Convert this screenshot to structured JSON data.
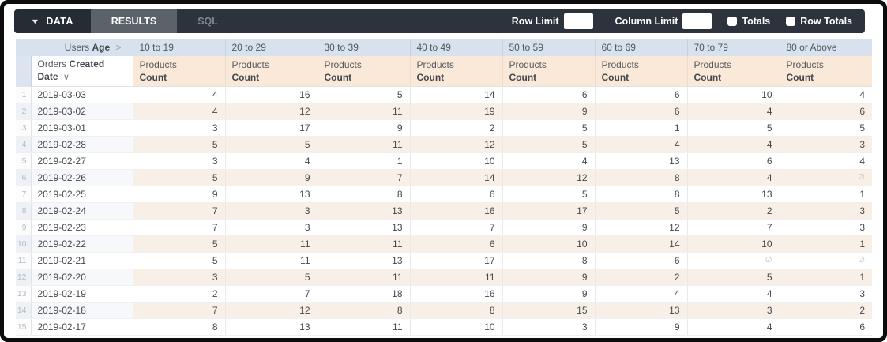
{
  "toolbar": {
    "tabs": [
      {
        "label": "DATA",
        "active": true
      },
      {
        "label": "RESULTS",
        "active": false
      },
      {
        "label": "SQL",
        "active": false
      }
    ],
    "row_limit_label": "Row Limit",
    "row_limit_value": "",
    "column_limit_label": "Column Limit",
    "column_limit_value": "",
    "totals_label": "Totals",
    "totals_checked": false,
    "row_totals_label": "Row Totals",
    "row_totals_checked": false
  },
  "table": {
    "pivot_field": {
      "prefix": "Users",
      "bold": "Age"
    },
    "row_field": {
      "prefix": "Orders",
      "bold1": "Created",
      "bold2": "Date"
    },
    "age_buckets": [
      "10 to 19",
      "20 to 29",
      "30 to 39",
      "40 to 49",
      "50 to 59",
      "60 to 69",
      "70 to 79",
      "80 or Above"
    ],
    "measure": {
      "prefix": "Products",
      "bold": "Count"
    },
    "null_symbol": "∅",
    "rows": [
      {
        "n": 1,
        "date": "2019-03-03",
        "values": [
          4,
          16,
          5,
          14,
          6,
          6,
          10,
          4
        ]
      },
      {
        "n": 2,
        "date": "2019-03-02",
        "values": [
          4,
          12,
          11,
          19,
          9,
          6,
          4,
          6
        ]
      },
      {
        "n": 3,
        "date": "2019-03-01",
        "values": [
          3,
          17,
          9,
          2,
          5,
          1,
          5,
          5
        ]
      },
      {
        "n": 4,
        "date": "2019-02-28",
        "values": [
          5,
          5,
          11,
          12,
          5,
          4,
          4,
          3
        ]
      },
      {
        "n": 5,
        "date": "2019-02-27",
        "values": [
          3,
          4,
          1,
          10,
          4,
          13,
          6,
          4
        ]
      },
      {
        "n": 6,
        "date": "2019-02-26",
        "values": [
          5,
          9,
          7,
          14,
          12,
          8,
          4,
          null
        ]
      },
      {
        "n": 7,
        "date": "2019-02-25",
        "values": [
          9,
          13,
          8,
          6,
          5,
          8,
          13,
          1
        ]
      },
      {
        "n": 8,
        "date": "2019-02-24",
        "values": [
          7,
          3,
          13,
          16,
          17,
          5,
          2,
          3
        ]
      },
      {
        "n": 9,
        "date": "2019-02-23",
        "values": [
          7,
          3,
          13,
          7,
          9,
          12,
          7,
          3
        ]
      },
      {
        "n": 10,
        "date": "2019-02-22",
        "values": [
          5,
          11,
          11,
          6,
          10,
          14,
          10,
          1
        ]
      },
      {
        "n": 11,
        "date": "2019-02-21",
        "values": [
          5,
          11,
          13,
          17,
          8,
          6,
          null,
          null
        ]
      },
      {
        "n": 12,
        "date": "2019-02-20",
        "values": [
          3,
          5,
          11,
          11,
          9,
          2,
          5,
          1
        ]
      },
      {
        "n": 13,
        "date": "2019-02-19",
        "values": [
          2,
          7,
          18,
          16,
          9,
          4,
          4,
          3
        ]
      },
      {
        "n": 14,
        "date": "2019-02-18",
        "values": [
          7,
          12,
          8,
          8,
          15,
          13,
          3,
          2
        ]
      },
      {
        "n": 15,
        "date": "2019-02-17",
        "values": [
          8,
          13,
          11,
          10,
          3,
          9,
          4,
          6
        ]
      }
    ]
  },
  "colors": {
    "topbar_bg": "#2d333c",
    "active_tab_bg": "#262c34",
    "results_tab_bg": "#5b626a",
    "pivot_header_bg": "#d7e2ee",
    "measure_header_bg": "#fae8d8",
    "stripe_measure_bg": "#f8f0e7",
    "stripe_dimension_bg": "#f6f8fb"
  }
}
